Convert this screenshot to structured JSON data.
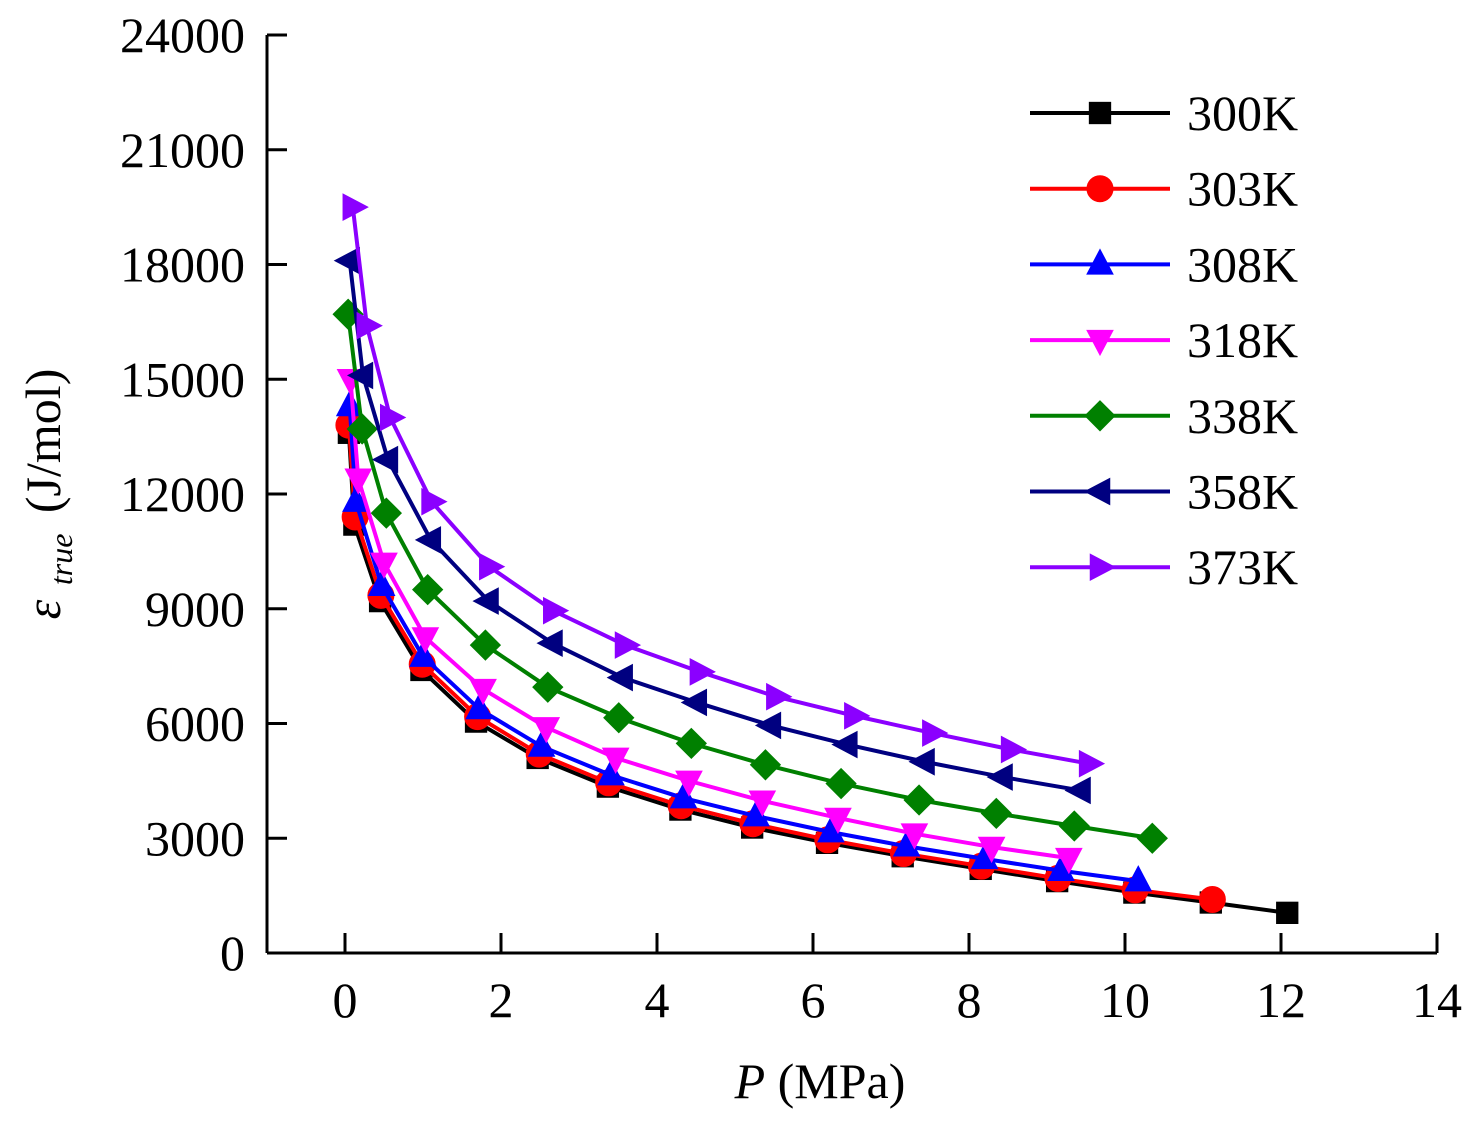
{
  "chart_data": {
    "type": "line",
    "xlabel": {
      "symbol": "P",
      "unit": "(MPa)"
    },
    "ylabel": {
      "symbol": "ε",
      "subscript": "true",
      "unit": "(J/mol)"
    },
    "xlim": [
      -1,
      14
    ],
    "ylim": [
      0,
      24000
    ],
    "xticks": [
      0,
      2,
      4,
      6,
      8,
      10,
      12,
      14
    ],
    "yticks": [
      0,
      3000,
      6000,
      9000,
      12000,
      15000,
      18000,
      21000,
      24000
    ],
    "xtick_labels": [
      "0",
      "2",
      "4",
      "6",
      "8",
      "10",
      "12",
      "14"
    ],
    "ytick_labels": [
      "0",
      "3000",
      "6000",
      "9000",
      "12000",
      "15000",
      "18000",
      "21000",
      "24000"
    ],
    "legend_position": "top-right",
    "series": [
      {
        "name": "300K",
        "color": "#000000",
        "marker": "square",
        "x": [
          0.05,
          0.12,
          0.45,
          0.98,
          1.68,
          2.47,
          3.37,
          4.3,
          5.22,
          6.18,
          7.15,
          8.15,
          9.13,
          10.12,
          11.1,
          12.08
        ],
        "y": [
          13600,
          11200,
          9200,
          7400,
          6050,
          5100,
          4350,
          3750,
          3280,
          2880,
          2530,
          2200,
          1880,
          1580,
          1320,
          1050
        ]
      },
      {
        "name": "303K",
        "color": "#ff0000",
        "marker": "circle",
        "x": [
          0.05,
          0.13,
          0.46,
          0.99,
          1.7,
          2.49,
          3.38,
          4.31,
          5.23,
          6.19,
          7.16,
          8.16,
          9.14,
          10.13,
          11.12
        ],
        "y": [
          13800,
          11400,
          9350,
          7550,
          6180,
          5200,
          4450,
          3850,
          3380,
          2960,
          2600,
          2270,
          1950,
          1650,
          1400
        ]
      },
      {
        "name": "308K",
        "color": "#0000ff",
        "marker": "triangle-up",
        "x": [
          0.06,
          0.14,
          0.47,
          1.0,
          1.72,
          2.52,
          3.41,
          4.34,
          5.27,
          6.23,
          7.2,
          8.2,
          9.18,
          10.17
        ],
        "y": [
          14300,
          11800,
          9600,
          7750,
          6380,
          5400,
          4650,
          4050,
          3580,
          3160,
          2790,
          2460,
          2150,
          1880
        ]
      },
      {
        "name": "318K",
        "color": "#ff00ff",
        "marker": "triangle-down",
        "x": [
          0.07,
          0.17,
          0.5,
          1.03,
          1.77,
          2.58,
          3.47,
          4.41,
          5.35,
          6.32,
          7.3,
          8.29,
          9.28
        ],
        "y": [
          15000,
          12400,
          10200,
          8250,
          6900,
          5900,
          5100,
          4500,
          3980,
          3530,
          3120,
          2770,
          2480
        ]
      },
      {
        "name": "338K",
        "color": "#008000",
        "marker": "diamond",
        "x": [
          0.04,
          0.22,
          0.53,
          1.06,
          1.8,
          2.6,
          3.51,
          4.44,
          5.39,
          6.36,
          7.36,
          8.35,
          9.35,
          10.35
        ],
        "y": [
          16700,
          13700,
          11500,
          9500,
          8050,
          6950,
          6150,
          5480,
          4920,
          4430,
          4000,
          3650,
          3320,
          3000
        ]
      },
      {
        "name": "358K",
        "color": "#000080",
        "marker": "triangle-left",
        "x": [
          0.06,
          0.23,
          0.55,
          1.1,
          1.84,
          2.66,
          3.56,
          4.51,
          5.46,
          6.44,
          7.43,
          8.43,
          9.43
        ],
        "y": [
          18100,
          15100,
          12900,
          10800,
          9200,
          8100,
          7200,
          6550,
          5950,
          5450,
          5000,
          4600,
          4250
        ]
      },
      {
        "name": "373K",
        "color": "#8b00ff",
        "marker": "triangle-right",
        "x": [
          0.1,
          0.28,
          0.58,
          1.11,
          1.85,
          2.67,
          3.59,
          4.55,
          5.53,
          6.53,
          7.53,
          8.54,
          9.54
        ],
        "y": [
          19500,
          16400,
          14000,
          11800,
          10100,
          8950,
          8050,
          7350,
          6700,
          6200,
          5750,
          5320,
          4950
        ]
      }
    ]
  }
}
